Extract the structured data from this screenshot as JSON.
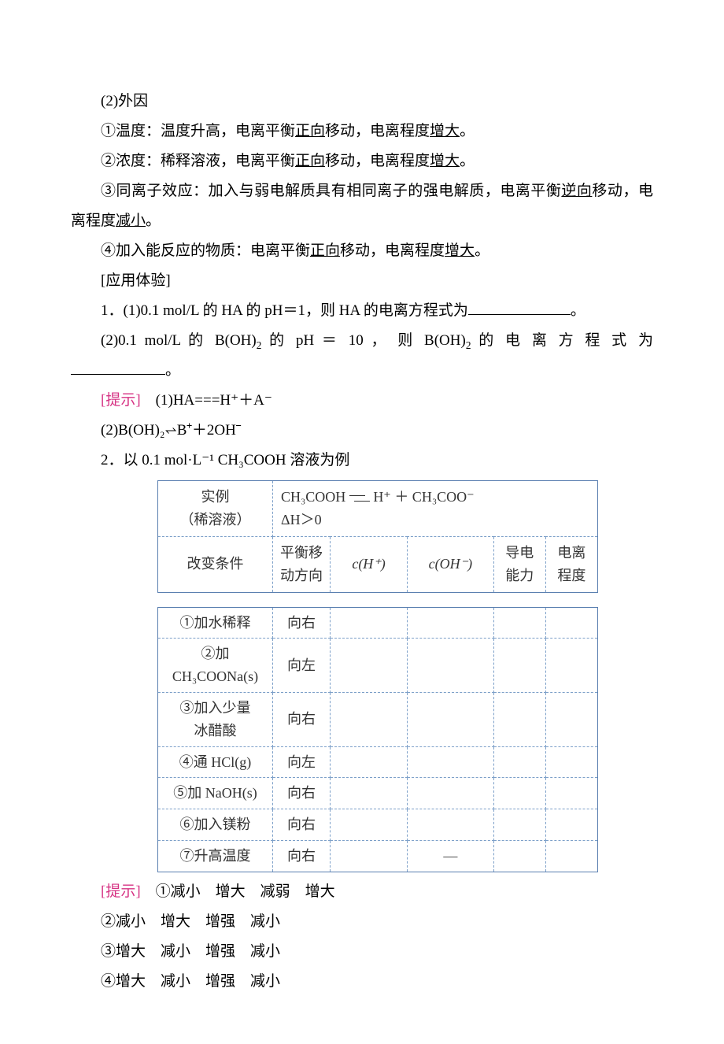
{
  "p2_heading": "(2)外因",
  "p2_items": [
    {
      "lead": "①温度：温度升高，电离平衡",
      "u1": "正向",
      "mid": "移动，电离程度",
      "u2": "增大",
      "tail": "。"
    },
    {
      "lead": "②浓度：稀释溶液，电离平衡",
      "u1": "正向",
      "mid": "移动，电离程度",
      "u2": "增大",
      "tail": "。"
    },
    {
      "lead": "③同离子效应：加入与弱电解质具有相同离子的强电解质，电离平衡",
      "u1": "逆向",
      "mid": "移动，电离程度",
      "u2": "减小",
      "tail": "。",
      "long": true
    },
    {
      "lead": "④加入能反应的物质：电离平衡",
      "u1": "正向",
      "mid": "移动，电离程度",
      "u2": "增大",
      "tail": "。"
    }
  ],
  "apply_label": "[应用体验]",
  "q1_1": "1．(1)0.1 mol/L 的 HA 的 pH＝1，则 HA 的电离方程式为",
  "q1_1_tail": "。",
  "q1_2_a": "(2)0.1  mol/L  的  B(OH)",
  "q1_2_b": "  的  pH ＝ 10 ， 则  B(OH)",
  "q1_2_c": "  的 电 离 方 程 式 为",
  "q1_2_tail": "。",
  "hint_label": "[提示]",
  "a1_1": "(1)HA===H⁺＋A⁻",
  "a1_2": "(2)B(OH)₂⥋B⁺＋2OH⁻",
  "q2_lead": "2．以 0.1 mol·L⁻¹ CH₃COOH 溶液为例",
  "tbl1": {
    "r1c1_l1": "实例",
    "r1c1_l2": "（稀溶液）",
    "eq_left": "CH₃COOH",
    "eq_right": "H⁺ ＋ CH₃COO⁻",
    "eq_dh": "ΔH＞0",
    "r2c1": "改变条件",
    "r2c2_l1": "平衡移",
    "r2c2_l2": "动方向",
    "r2c3": "c(H⁺)",
    "r2c4": "c(OH⁻)",
    "r2c5_l1": "导电",
    "r2c5_l2": "能力",
    "r2c6_l1": "电离",
    "r2c6_l2": "程度"
  },
  "tbl2_rows": [
    {
      "c1": "①加水稀释",
      "c2": "向右",
      "c3": "",
      "c4": "",
      "c5": "",
      "c6": ""
    },
    {
      "c1_l1": "②加",
      "c1_l2": "CH₃COONa(s)",
      "c2": "向左",
      "c3": "",
      "c4": "",
      "c5": "",
      "c6": ""
    },
    {
      "c1_l1": "③加入少量",
      "c1_l2": "冰醋酸",
      "c2": "向右",
      "c3": "",
      "c4": "",
      "c5": "",
      "c6": ""
    },
    {
      "c1": "④通 HCl(g)",
      "c2": "向左",
      "c3": "",
      "c4": "",
      "c5": "",
      "c6": ""
    },
    {
      "c1": "⑤加 NaOH(s)",
      "c2": "向右",
      "c3": "",
      "c4": "",
      "c5": "",
      "c6": ""
    },
    {
      "c1": "⑥加入镁粉",
      "c2": "向右",
      "c3": "",
      "c4": "",
      "c5": "",
      "c6": ""
    },
    {
      "c1": "⑦升高温度",
      "c2": "向右",
      "c3": "",
      "c4": "—",
      "c5": "",
      "c6": ""
    }
  ],
  "answers": [
    "①减小　增大　减弱　增大",
    "②减小　增大　增强　减小",
    "③增大　减小　增强　减小",
    "④增大　减小　增强　减小"
  ],
  "colors": {
    "text": "#000000",
    "pink": "#d63384",
    "table_border": "#5a7fb0",
    "table_dash": "#7da0c9",
    "bg": "#ffffff"
  }
}
